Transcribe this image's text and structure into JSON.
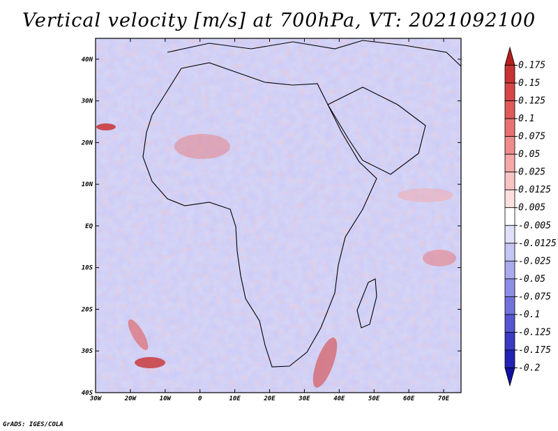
{
  "title": "Vertical velocity [m/s] at 700hPa, VT: 2021092100",
  "footer": "GrADS: IGES/COLA",
  "map": {
    "lon_ticks": [
      "30W",
      "20W",
      "10W",
      "0",
      "10E",
      "20E",
      "30E",
      "40E",
      "50E",
      "60E",
      "70E"
    ],
    "lat_ticks": [
      "40N",
      "30N",
      "20N",
      "10N",
      "EQ",
      "10S",
      "20S",
      "30S",
      "40S"
    ],
    "lon_range": [
      -30,
      75
    ],
    "lat_range": [
      -40,
      45
    ]
  },
  "colorbar": {
    "labels": [
      "0.175",
      "0.15",
      "0.125",
      "0.1",
      "0.075",
      "0.05",
      "0.025",
      "0.0125",
      "0.005",
      "-0.005",
      "-0.0125",
      "-0.025",
      "-0.05",
      "-0.075",
      "-0.1",
      "-0.125",
      "-0.175",
      "-0.2"
    ],
    "colors": [
      "#b41e1e",
      "#c83232",
      "#d64646",
      "#e05a5a",
      "#e87272",
      "#ee8c8c",
      "#f4a8a8",
      "#f8c4c4",
      "#fce0e0",
      "#ffffff",
      "#e0e0fa",
      "#c6c6f4",
      "#aaaaee",
      "#8e8ee6",
      "#7272dc",
      "#5656d0",
      "#3a3ac2",
      "#2222b4",
      "#1010a0"
    ]
  }
}
